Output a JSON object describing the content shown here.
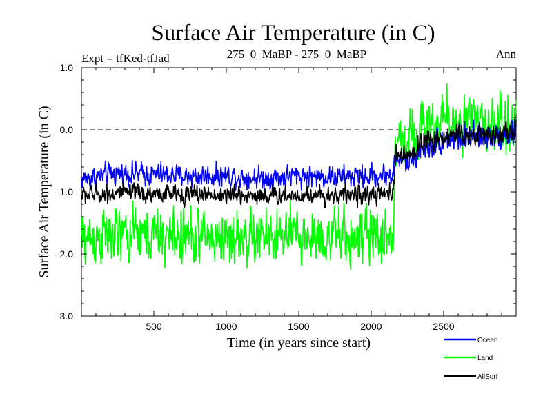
{
  "header": {
    "left": "Expt = tfKed-tfJad",
    "center": "275_0_MaBP - 275_0_MaBP",
    "right": "Ann"
  },
  "chart_data": {
    "type": "line",
    "title": "Surface Air Temperature (in C)",
    "xlabel": "Time (in years since start)",
    "ylabel": "Surface Air Temperature (in C)",
    "xlim": [
      0,
      3000
    ],
    "ylim": [
      -3.0,
      1.0
    ],
    "x_ticks": [
      500,
      1000,
      1500,
      2000,
      2500
    ],
    "x_tick_labels": [
      "500",
      "1000",
      "1500",
      "2000",
      "2500"
    ],
    "y_ticks": [
      -3.0,
      -2.0,
      -1.0,
      0.0,
      1.0
    ],
    "y_tick_labels": [
      "-3.0",
      "-2.0",
      "-1.0",
      "0.0",
      "1.0"
    ],
    "reference_line": {
      "y": 0.0,
      "style": "dashed"
    },
    "legend_position": "bottom-right",
    "series": [
      {
        "name": "Ocean",
        "color": "#0000ff",
        "x": [
          0,
          250,
          500,
          750,
          1000,
          1250,
          1500,
          1750,
          2000,
          2150,
          2170,
          2250,
          2350,
          2500,
          2750,
          3000
        ],
        "values": [
          -0.8,
          -0.7,
          -0.72,
          -0.75,
          -0.74,
          -0.78,
          -0.74,
          -0.76,
          -0.75,
          -0.72,
          -0.45,
          -0.55,
          -0.3,
          -0.15,
          -0.12,
          -0.05
        ],
        "noise_amplitude": [
          0.12,
          0.12,
          0.12,
          0.12,
          0.12,
          0.12,
          0.12,
          0.12,
          0.12,
          0.12,
          0.12,
          0.12,
          0.14,
          0.15,
          0.15,
          0.15
        ]
      },
      {
        "name": "Land",
        "color": "#00ff00",
        "x": [
          0,
          250,
          500,
          750,
          1000,
          1250,
          1500,
          1750,
          2000,
          2150,
          2170,
          2250,
          2350,
          2500,
          2750,
          3000
        ],
        "values": [
          -1.75,
          -1.7,
          -1.7,
          -1.72,
          -1.74,
          -1.73,
          -1.72,
          -1.74,
          -1.73,
          -1.72,
          -0.25,
          -0.1,
          0.05,
          0.15,
          0.1,
          0.12
        ],
        "noise_amplitude": [
          0.3,
          0.3,
          0.3,
          0.3,
          0.3,
          0.3,
          0.3,
          0.3,
          0.3,
          0.3,
          0.3,
          0.3,
          0.3,
          0.3,
          0.3,
          0.3
        ]
      },
      {
        "name": "AllSurf",
        "color": "#000000",
        "x": [
          0,
          250,
          500,
          750,
          1000,
          1250,
          1500,
          1750,
          2000,
          2150,
          2170,
          2250,
          2350,
          2500,
          2750,
          3000
        ],
        "values": [
          -1.05,
          -1.02,
          -1.03,
          -1.04,
          -1.05,
          -1.06,
          -1.05,
          -1.05,
          -1.05,
          -1.04,
          -0.4,
          -0.45,
          -0.2,
          -0.1,
          -0.08,
          -0.02
        ],
        "noise_amplitude": [
          0.1,
          0.1,
          0.1,
          0.1,
          0.1,
          0.1,
          0.1,
          0.1,
          0.1,
          0.1,
          0.1,
          0.1,
          0.12,
          0.12,
          0.12,
          0.12
        ]
      }
    ]
  }
}
